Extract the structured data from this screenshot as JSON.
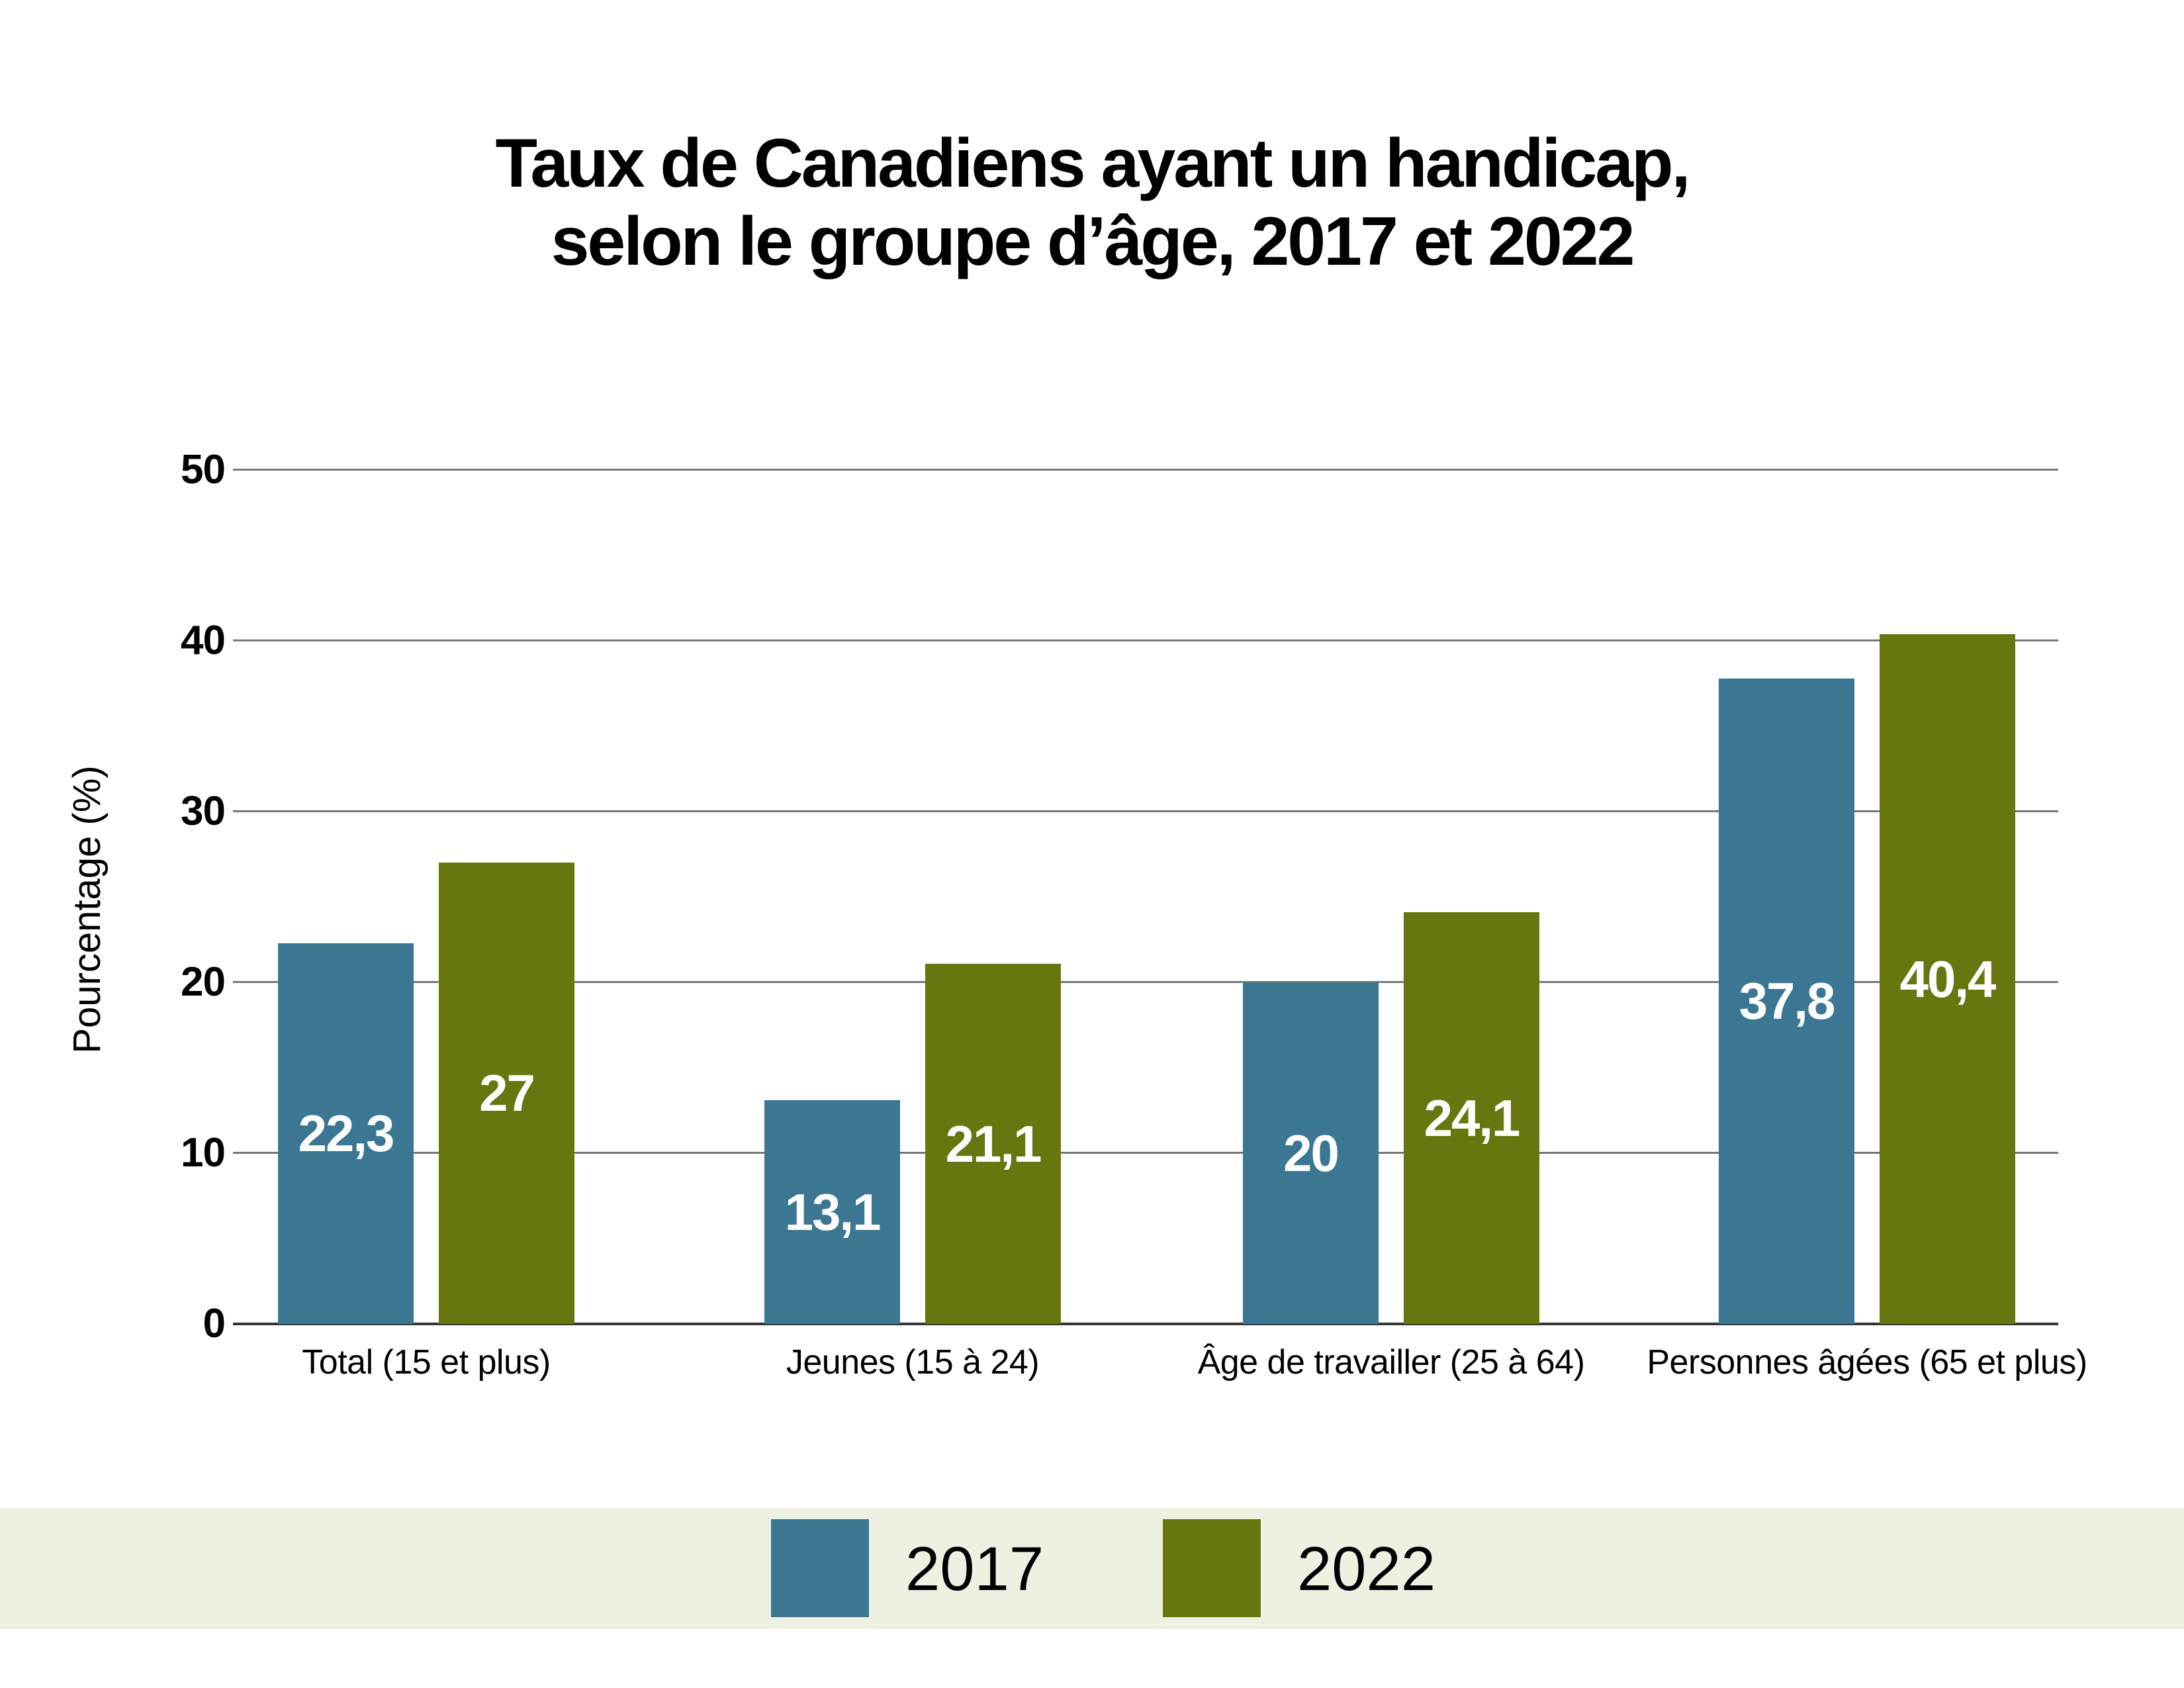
{
  "title": {
    "line1": "Taux de Canadiens ayant un handicap,",
    "line2": "selon le groupe d’âge, 2017 et 2022"
  },
  "y_axis": {
    "label": "Pourcentage (%)",
    "ticks": [
      "50",
      "40",
      "30",
      "20",
      "10",
      "0"
    ]
  },
  "legend": {
    "band_color": "#EEF0E1",
    "items": [
      {
        "label": "2017",
        "color": "#3B7793"
      },
      {
        "label": "2022",
        "color": "#697610"
      }
    ]
  },
  "chart_data": {
    "type": "bar",
    "title": "Taux de Canadiens ayant un handicap, selon le groupe d’âge, 2017 et 2022",
    "xlabel": "",
    "ylabel": "Pourcentage (%)",
    "ylim": [
      0,
      50
    ],
    "yticks": [
      0,
      10,
      20,
      30,
      40,
      50
    ],
    "grid": true,
    "legend_position": "bottom",
    "categories": [
      "Total (15 et plus)",
      "Jeunes (15 à 24)",
      "Âge de travailler (25 à 64)",
      "Personnes âgées (65 et plus)"
    ],
    "series": [
      {
        "name": "2017",
        "color": "#3B7793",
        "values": [
          22.3,
          13.1,
          20,
          37.8
        ],
        "value_labels": [
          "22,3",
          "13,1",
          "20",
          "37,8"
        ]
      },
      {
        "name": "2022",
        "color": "#697610",
        "values": [
          27,
          21.1,
          24.1,
          40.4
        ],
        "value_labels": [
          "27",
          "21,1",
          "24,1",
          "40,4"
        ]
      }
    ]
  }
}
